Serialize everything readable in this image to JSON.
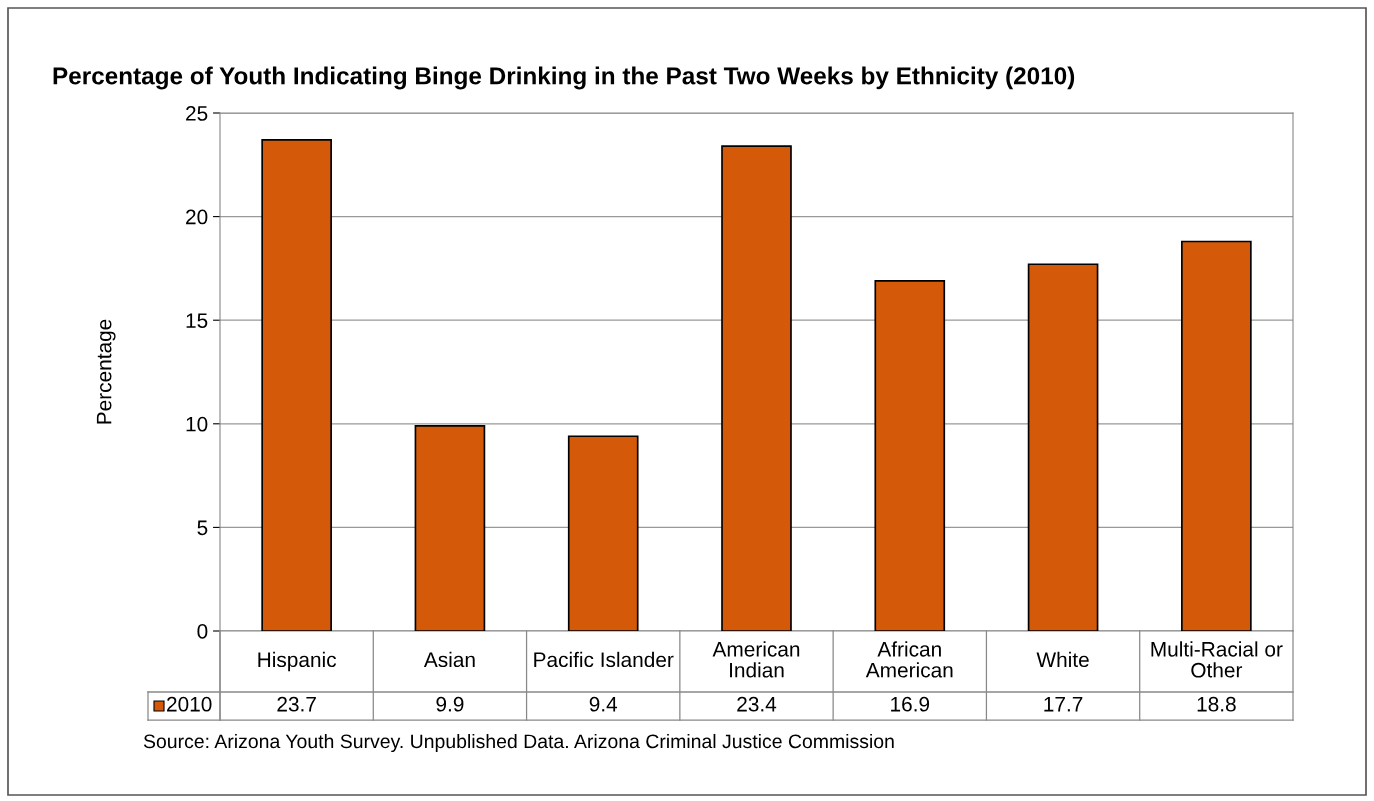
{
  "chart_data": {
    "type": "bar",
    "title": "Percentage of Youth Indicating Binge Drinking in the Past Two Weeks by Ethnicity (2010)",
    "ylabel": "Percentage",
    "categories": [
      "Hispanic",
      "Asian",
      "Pacific Islander",
      "American\nIndian",
      "African\nAmerican",
      "White",
      "Multi-Racial or\nOther"
    ],
    "series": [
      {
        "name": "2010",
        "color": "#d45a0a",
        "values": [
          23.7,
          9.9,
          9.4,
          23.4,
          16.9,
          17.7,
          18.8
        ]
      }
    ],
    "ylim": [
      0,
      25
    ],
    "yticks": [
      0,
      5,
      10,
      15,
      20,
      25
    ],
    "grid": "y",
    "data_labels": true,
    "annotations": [
      "Source: Arizona Youth Survey. Unpublished Data. Arizona Criminal Justice Commission"
    ]
  }
}
